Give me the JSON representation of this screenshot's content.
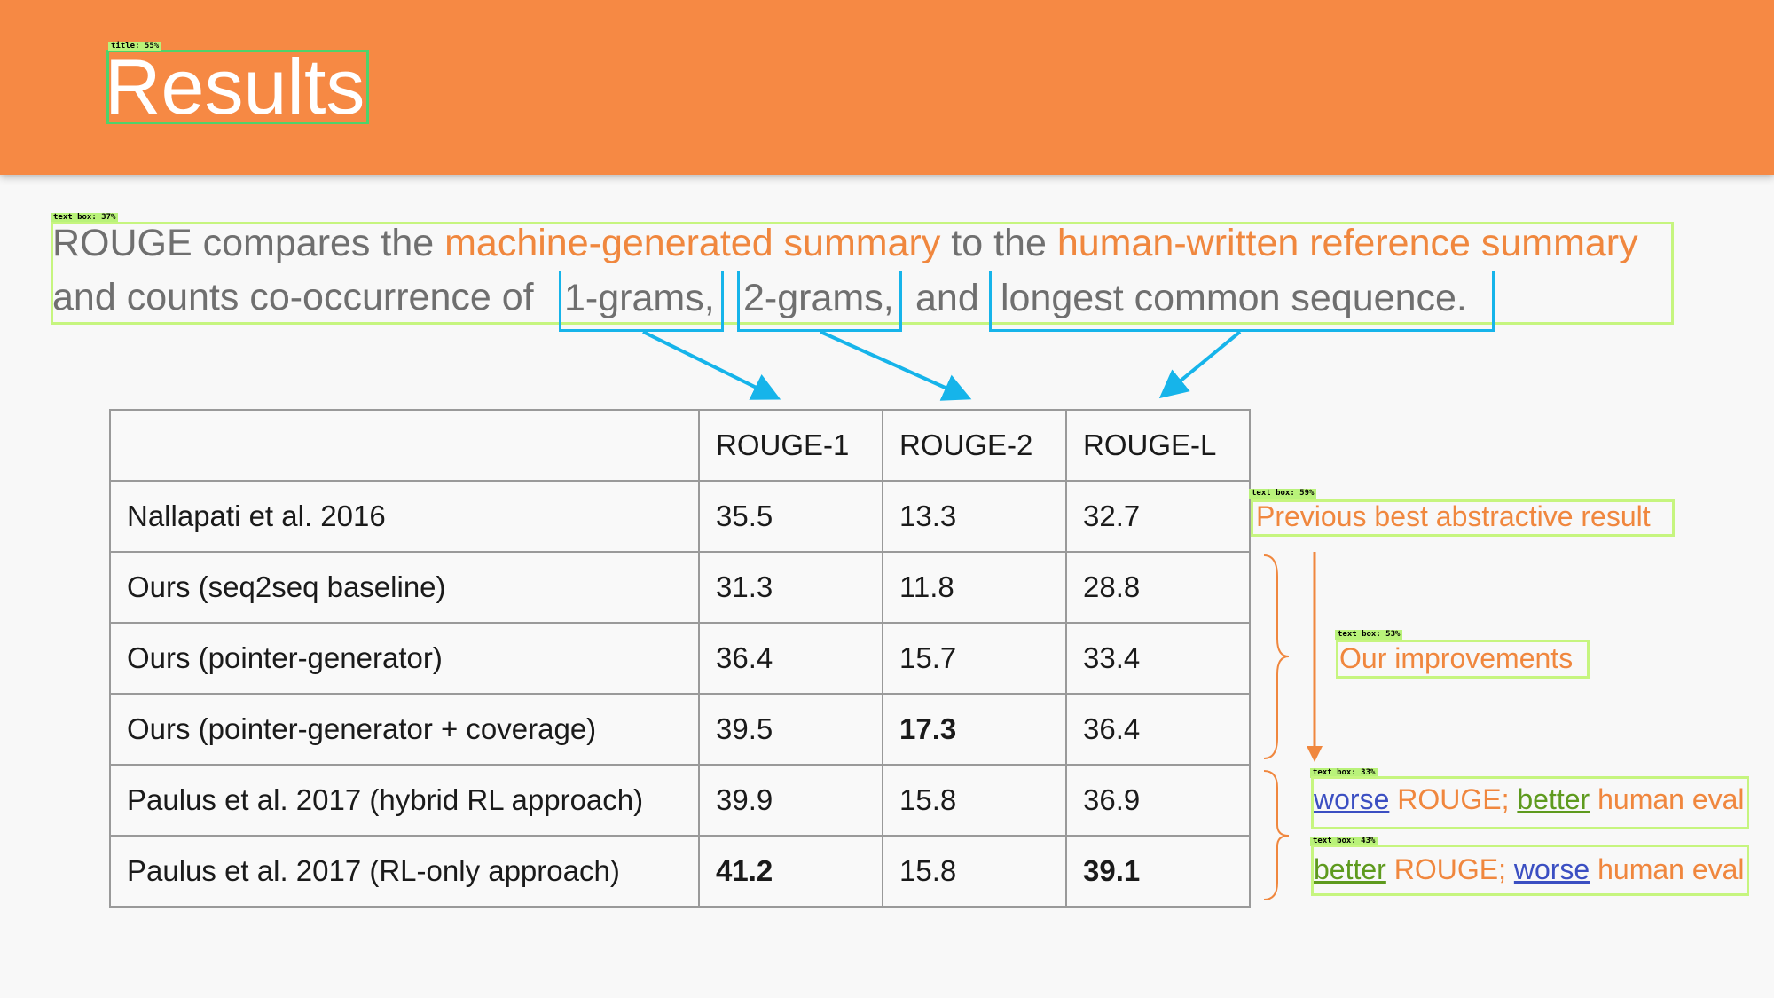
{
  "title": "Results",
  "detections": {
    "title": "title: 55%",
    "intro": "text box: 37%",
    "prev_best": "text box: 59%",
    "improvements": "text box: 53%",
    "worse_rouge": "text box: 33%",
    "better_rouge": "text box: 43%"
  },
  "intro": {
    "part1": "ROUGE compares the ",
    "machine": "machine-generated summary",
    "part2": " to the ",
    "human": "human-written reference summary",
    "part3": "and counts co-occurrence of ",
    "term1": "1-grams,",
    "term2": "2-grams,",
    "and": "and",
    "term3": "longest common sequence."
  },
  "table": {
    "headers": [
      "",
      "ROUGE-1",
      "ROUGE-2",
      "ROUGE-L"
    ],
    "rows": [
      {
        "model": "Nallapati et al. 2016",
        "r1": "35.5",
        "r2": "13.3",
        "rl": "32.7"
      },
      {
        "model": "Ours (seq2seq baseline)",
        "r1": "31.3",
        "r2": "11.8",
        "rl": "28.8"
      },
      {
        "model": "Ours (pointer-generator)",
        "r1": "36.4",
        "r2": "15.7",
        "rl": "33.4"
      },
      {
        "model": "Ours (pointer-generator + coverage)",
        "r1": "39.5",
        "r2": "17.3",
        "rl": "36.4"
      },
      {
        "model": "Paulus et al. 2017 (hybrid RL approach)",
        "r1": "39.9",
        "r2": "15.8",
        "rl": "36.9"
      },
      {
        "model": "Paulus et al. 2017 (RL-only approach)",
        "r1": "41.2",
        "r2": "15.8",
        "rl": "39.1"
      }
    ]
  },
  "notes": {
    "prev_best": "Previous best abstractive result",
    "improvements": "Our improvements",
    "row5": {
      "a": "worse",
      "b": " ROUGE; ",
      "c": "better",
      "d": " human eval"
    },
    "row6": {
      "a": "better",
      "b": " ROUGE; ",
      "c": "worse",
      "d": " human eval"
    }
  },
  "colors": {
    "header": "#f68944",
    "accent": "#f0873e",
    "arrow_blue": "#16b4ea",
    "detect_green": "#c6f57f"
  }
}
